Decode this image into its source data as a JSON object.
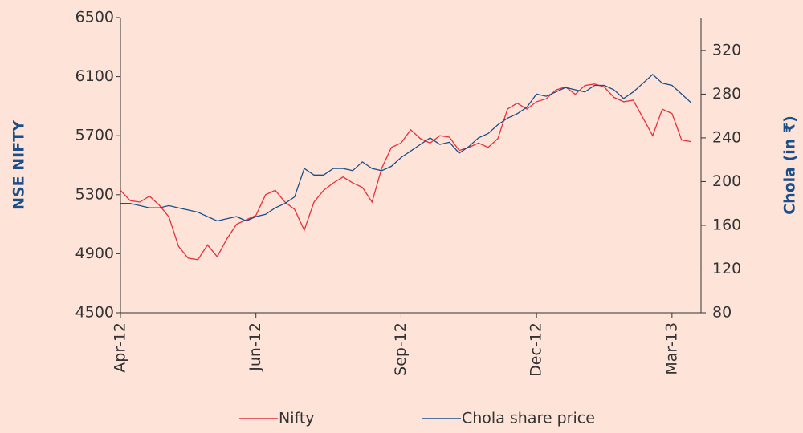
{
  "chart_data": {
    "type": "line",
    "y_axis_label": "NSE NIFTY",
    "y2_axis_label": "Chola (in ₹)",
    "xlim": [
      0,
      60
    ],
    "xticks": [
      {
        "value": 0,
        "label": "Apr-12"
      },
      {
        "value": 14,
        "label": "Jun-12"
      },
      {
        "value": 29,
        "label": "Sep-12"
      },
      {
        "value": 43,
        "label": "Dec-12"
      },
      {
        "value": 57,
        "label": "Mar-13"
      }
    ],
    "ylim": [
      4500,
      6500
    ],
    "yticks": [
      4500,
      4900,
      5300,
      5700,
      6100,
      6500
    ],
    "y2lim": [
      80,
      350
    ],
    "y2ticks": [
      80,
      120,
      160,
      200,
      240,
      280,
      320
    ],
    "legend": "bottom",
    "series": [
      {
        "name": "Nifty",
        "color": "#e8303a",
        "values": [
          5330,
          5260,
          5250,
          5290,
          5230,
          5150,
          4950,
          4870,
          4860,
          4960,
          4880,
          5000,
          5100,
          5130,
          5160,
          5300,
          5330,
          5250,
          5200,
          5060,
          5250,
          5330,
          5380,
          5420,
          5380,
          5350,
          5250,
          5480,
          5620,
          5650,
          5740,
          5680,
          5650,
          5700,
          5690,
          5600,
          5620,
          5650,
          5620,
          5680,
          5880,
          5920,
          5880,
          5930,
          5950,
          6010,
          6030,
          5980,
          6040,
          6050,
          6030,
          5960,
          5930,
          5940,
          5820,
          5700,
          5880,
          5850,
          5670,
          5660
        ]
      },
      {
        "name": "Chola share price",
        "color": "#1b4f8a",
        "axis": "y2",
        "values": [
          180,
          180,
          178,
          176,
          176,
          178,
          176,
          174,
          172,
          168,
          164,
          166,
          168,
          164,
          168,
          170,
          176,
          180,
          186,
          212,
          206,
          206,
          212,
          212,
          210,
          218,
          212,
          210,
          214,
          222,
          228,
          234,
          240,
          234,
          236,
          226,
          232,
          240,
          244,
          252,
          258,
          262,
          268,
          280,
          278,
          282,
          286,
          284,
          282,
          288,
          288,
          284,
          276,
          282,
          290,
          298,
          290,
          288,
          280,
          272
        ]
      }
    ]
  }
}
